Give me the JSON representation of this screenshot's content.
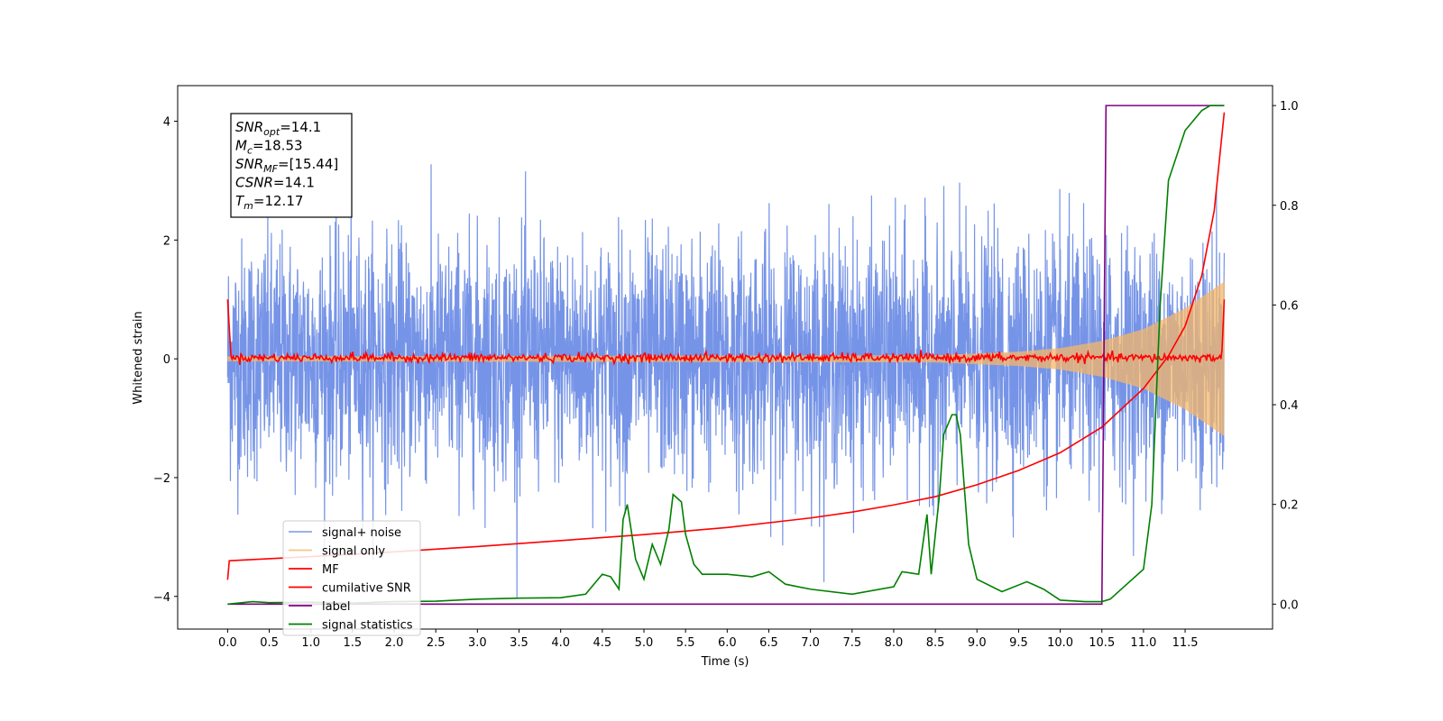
{
  "chart_data": {
    "type": "line",
    "xlabel": "Time (s)",
    "ylabel_left": "Whitened strain",
    "ylabel_right": "",
    "xlim": [
      -0.6,
      12.55
    ],
    "ylim_left": [
      -4.55,
      4.6
    ],
    "ylim_right": [
      -0.05,
      1.04
    ],
    "x_ticks": [
      0,
      0.5,
      1,
      1.5,
      2,
      2.5,
      3,
      3.5,
      4,
      4.5,
      5,
      5.5,
      6,
      6.5,
      7,
      7.5,
      8,
      8.5,
      9,
      9.5,
      10,
      10.5,
      11,
      11.5
    ],
    "x_tick_labels": [
      "0.0",
      "0.5",
      "1.0",
      "1.5",
      "2.0",
      "2.5",
      "3.0",
      "3.5",
      "4.0",
      "4.5",
      "5.0",
      "5.5",
      "6.0",
      "6.5",
      "7.0",
      "7.5",
      "8.0",
      "8.5",
      "9.0",
      "9.5",
      "10.0",
      "10.5",
      "11.0",
      "11.5"
    ],
    "y_left_ticks": [
      -4,
      -2,
      0,
      2,
      4
    ],
    "y_left_tick_labels": [
      "−4",
      "−2",
      "0",
      "2",
      "4"
    ],
    "y_right_ticks": [
      0,
      0.2,
      0.4,
      0.6,
      0.8,
      1.0
    ],
    "y_right_tick_labels": [
      "0.0",
      "0.2",
      "0.4",
      "0.6",
      "0.8",
      "1.0"
    ],
    "grid": false,
    "legend_position": "lower-left",
    "annotation": {
      "lines": [
        {
          "base": "SNR",
          "sub": "opt",
          "rest": "=14.1"
        },
        {
          "base": "M",
          "sub": "c",
          "rest": "=18.53"
        },
        {
          "base": "SNR",
          "sub": "MF",
          "rest": "=[15.44]"
        },
        {
          "base": "CSNR",
          "sub": "",
          "rest": "=14.1"
        },
        {
          "base": "T",
          "sub": "m",
          "rest": "=12.17"
        }
      ]
    },
    "series": [
      {
        "name": "signal+ noise",
        "color": "#6f8ee6",
        "axis": "left",
        "kind": "noise",
        "amplitude_std": 1.0,
        "x_range": [
          0,
          11.97
        ]
      },
      {
        "name": "signal only",
        "color": "#f5b76a",
        "axis": "left",
        "kind": "chirp",
        "envelope": {
          "x": [
            0,
            8.5,
            9.5,
            10.0,
            10.5,
            11.0,
            11.5,
            11.97
          ],
          "y": [
            0.04,
            0.06,
            0.12,
            0.18,
            0.3,
            0.5,
            0.85,
            1.3
          ]
        },
        "x_range": [
          0,
          11.97
        ]
      },
      {
        "name": "MF",
        "color": "#ff0000",
        "axis": "left",
        "kind": "mf",
        "x": [
          0,
          0.04,
          11.94,
          11.97
        ],
        "y": [
          1.0,
          0.05,
          0.05,
          1.0
        ],
        "ripple": 0.06
      },
      {
        "name": "cumilative SNR",
        "color": "#ff0000",
        "axis": "left",
        "x": [
          0,
          0.02,
          1,
          2,
          3,
          4,
          5,
          6,
          7,
          7.5,
          8,
          8.5,
          9,
          9.5,
          10,
          10.5,
          11,
          11.3,
          11.5,
          11.7,
          11.85,
          11.97
        ],
        "y": [
          -3.72,
          -3.4,
          -3.33,
          -3.25,
          -3.16,
          -3.06,
          -2.96,
          -2.84,
          -2.68,
          -2.58,
          -2.46,
          -2.32,
          -2.12,
          -1.88,
          -1.58,
          -1.15,
          -0.5,
          0.05,
          0.55,
          1.4,
          2.5,
          4.15
        ]
      },
      {
        "name": "label",
        "color": "#800080",
        "axis": "right",
        "x": [
          0,
          10.5,
          10.55,
          11.97
        ],
        "y": [
          0.0,
          0.0,
          1.0,
          1.0
        ]
      },
      {
        "name": "signal statistics",
        "color": "#008000",
        "axis": "right",
        "x": [
          0,
          0.3,
          0.5,
          1,
          1.5,
          2,
          2.5,
          3,
          3.5,
          4,
          4.3,
          4.5,
          4.6,
          4.7,
          4.75,
          4.8,
          4.9,
          5.0,
          5.1,
          5.2,
          5.3,
          5.35,
          5.45,
          5.5,
          5.6,
          5.7,
          6.0,
          6.3,
          6.5,
          6.7,
          7.0,
          7.5,
          8.0,
          8.1,
          8.3,
          8.4,
          8.45,
          8.55,
          8.6,
          8.7,
          8.75,
          8.8,
          8.9,
          9.0,
          9.3,
          9.6,
          9.8,
          10.0,
          10.3,
          10.5,
          10.6,
          10.8,
          11.0,
          11.1,
          11.2,
          11.3,
          11.4,
          11.5,
          11.6,
          11.7,
          11.8,
          11.97
        ],
        "y": [
          0.0,
          0.005,
          0.003,
          0.004,
          0.002,
          0.005,
          0.006,
          0.01,
          0.012,
          0.013,
          0.02,
          0.06,
          0.055,
          0.03,
          0.17,
          0.2,
          0.09,
          0.05,
          0.12,
          0.08,
          0.15,
          0.22,
          0.205,
          0.14,
          0.08,
          0.06,
          0.06,
          0.055,
          0.065,
          0.04,
          0.03,
          0.02,
          0.035,
          0.065,
          0.06,
          0.18,
          0.06,
          0.22,
          0.34,
          0.38,
          0.38,
          0.34,
          0.12,
          0.05,
          0.025,
          0.045,
          0.03,
          0.008,
          0.005,
          0.005,
          0.01,
          0.04,
          0.07,
          0.2,
          0.6,
          0.85,
          0.9,
          0.95,
          0.97,
          0.99,
          1.0,
          1.0
        ]
      }
    ]
  }
}
